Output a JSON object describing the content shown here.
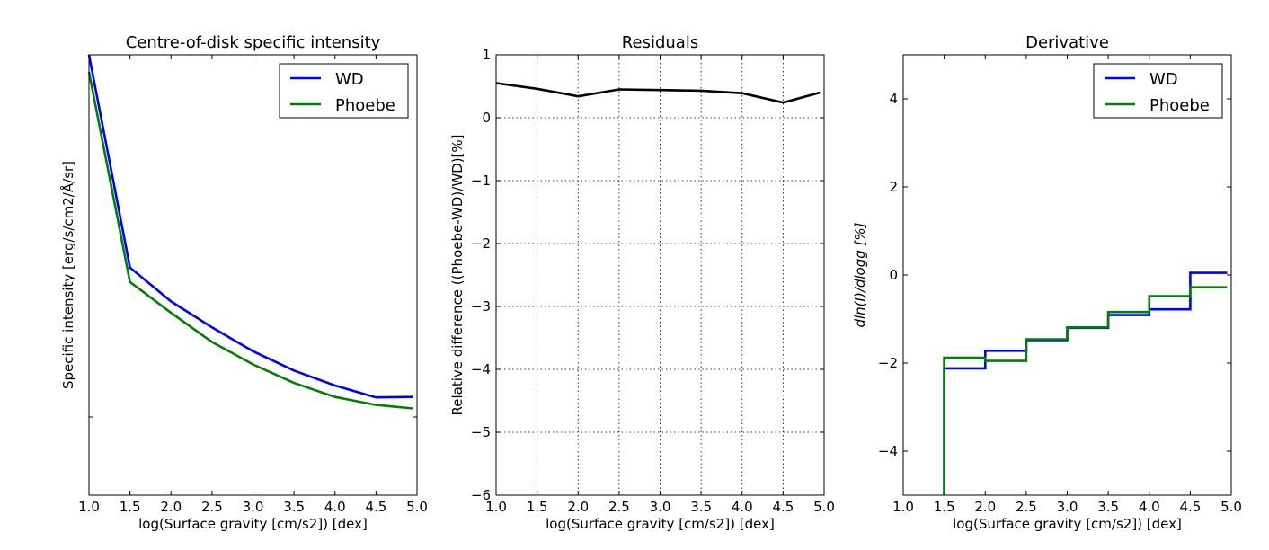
{
  "chart_data": [
    {
      "type": "line",
      "title": "Centre-of-disk specific intensity",
      "xlabel": "log(Surface gravity [cm/s2]) [dex]",
      "ylabel": "Specific intensity [erg/s/cm2/Å/sr]",
      "xlim": [
        1.0,
        5.0
      ],
      "ylim": [
        0.0,
        1.0
      ],
      "xticks": [
        "1.0",
        "1.5",
        "2.0",
        "2.5",
        "3.0",
        "3.5",
        "4.0",
        "4.5",
        "5.0"
      ],
      "yticks": [],
      "grid": false,
      "legend": "top-right",
      "series": [
        {
          "name": "WD",
          "color": "#0000ff",
          "x": [
            1.0,
            1.5,
            2.0,
            2.5,
            3.0,
            3.5,
            4.0,
            4.5,
            4.95
          ],
          "y": [
            1.0,
            0.517,
            0.44,
            0.381,
            0.327,
            0.283,
            0.249,
            0.222,
            0.223
          ]
        },
        {
          "name": "Phoebe",
          "color": "#008000",
          "x": [
            1.0,
            1.5,
            2.0,
            2.5,
            3.0,
            3.5,
            4.0,
            4.5,
            4.95
          ],
          "y": [
            0.961,
            0.484,
            0.414,
            0.348,
            0.297,
            0.255,
            0.223,
            0.205,
            0.197
          ]
        }
      ]
    },
    {
      "type": "line",
      "title": "Residuals",
      "xlabel": "log(Surface gravity [cm/s2]) [dex]",
      "ylabel": "Relative difference ((Phoebe-WD)/WD)[%]",
      "xlim": [
        1.0,
        5.0
      ],
      "ylim": [
        -6,
        1
      ],
      "xticks": [
        "1.0",
        "1.5",
        "2.0",
        "2.5",
        "3.0",
        "3.5",
        "4.0",
        "4.5",
        "5.0"
      ],
      "yticks": [
        "−6",
        "−5",
        "−4",
        "−3",
        "−2",
        "−1",
        "0",
        "1"
      ],
      "grid": true,
      "series": [
        {
          "color": "#000000",
          "x": [
            1.0,
            1.5,
            2.0,
            2.5,
            3.0,
            3.5,
            4.0,
            4.5,
            4.95
          ],
          "y": [
            0.55,
            0.46,
            0.34,
            0.45,
            0.44,
            0.43,
            0.39,
            0.24,
            0.4
          ]
        }
      ]
    },
    {
      "type": "line",
      "step": "post",
      "title": "Derivative",
      "xlabel": "log(Surface gravity [cm/s2]) [dex]",
      "ylabel": "dln(I)/dlogg [%]",
      "xlim": [
        1.0,
        5.0
      ],
      "ylim": [
        -5,
        5
      ],
      "xticks": [
        "1.0",
        "1.5",
        "2.0",
        "2.5",
        "3.0",
        "3.5",
        "4.0",
        "4.5",
        "5.0"
      ],
      "yticks": [
        "−4",
        "−2",
        "0",
        "2",
        "4"
      ],
      "grid": false,
      "legend": "top-right",
      "series": [
        {
          "name": "WD",
          "color": "#0000ff",
          "x": [
            1.5,
            2.0,
            2.5,
            3.0,
            3.5,
            4.0,
            4.5,
            4.95
          ],
          "y": [
            -2.12,
            -1.72,
            -1.48,
            -1.2,
            -0.91,
            -0.78,
            0.05,
            0.05
          ],
          "drop_start": -5.0
        },
        {
          "name": "Phoebe",
          "color": "#008000",
          "x": [
            1.5,
            2.0,
            2.5,
            3.0,
            3.5,
            4.0,
            4.5,
            4.95
          ],
          "y": [
            -1.88,
            -1.95,
            -1.46,
            -1.19,
            -0.84,
            -0.48,
            -0.28,
            -0.28
          ],
          "drop_start": -5.0
        }
      ]
    }
  ]
}
